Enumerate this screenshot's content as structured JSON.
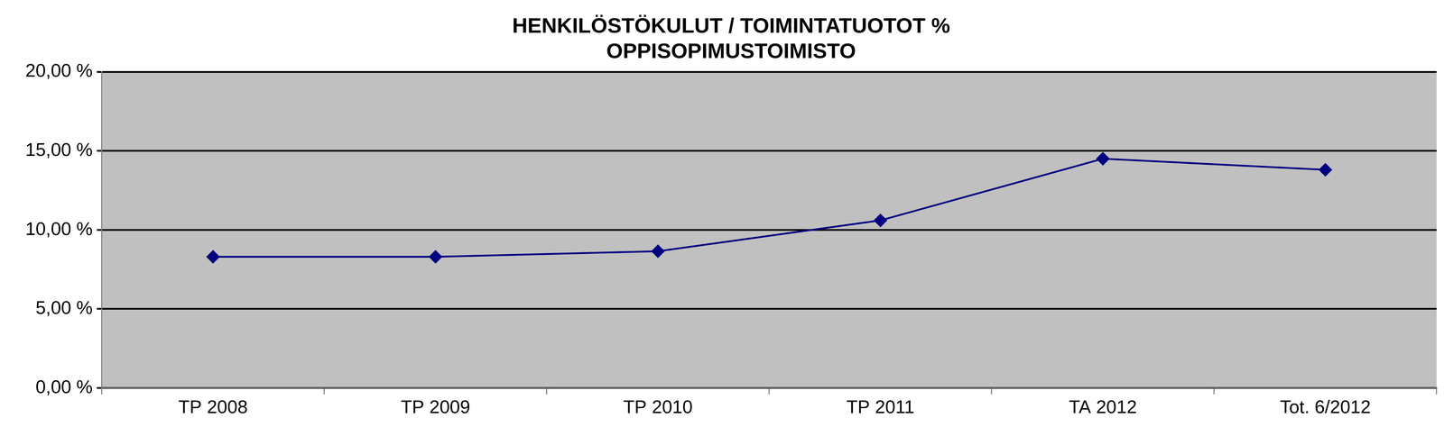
{
  "chart_data": {
    "type": "line",
    "title": [
      "HENKILÖSTÖKULUT / TOIMINTATUOTOT %",
      "OPPISOPIMUSTOIMISTO"
    ],
    "categories": [
      "TP 2008",
      "TP 2009",
      "TP 2010",
      "TP 2011",
      "TA 2012",
      "Tot. 6/2012"
    ],
    "values": [
      8.3,
      8.3,
      8.65,
      10.6,
      14.5,
      13.8
    ],
    "color": "#000080",
    "marker": "diamond",
    "line_style": "solid",
    "ylim": [
      0,
      20
    ],
    "yticks": [
      {
        "value": 0,
        "label": "0,00 %"
      },
      {
        "value": 5,
        "label": "5,00 %"
      },
      {
        "value": 10,
        "label": "10,00 %"
      },
      {
        "value": 15,
        "label": "15,00 %"
      },
      {
        "value": 20,
        "label": "20,00 %"
      }
    ],
    "grid": true
  }
}
